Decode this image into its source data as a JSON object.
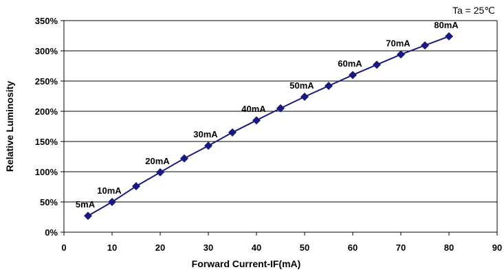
{
  "chart_data": {
    "type": "line",
    "title": "",
    "condition_label": "Ta = 25℃",
    "xlabel": "Forward Current-IF(mA)",
    "ylabel": "Relative Luminosity",
    "xlim": [
      0,
      90
    ],
    "ylim": [
      0,
      350
    ],
    "xticks": [
      0,
      10,
      20,
      30,
      40,
      50,
      60,
      70,
      80,
      90
    ],
    "yticks": [
      0,
      50,
      100,
      150,
      200,
      250,
      300,
      350
    ],
    "ytick_labels": [
      "0%",
      "50%",
      "100%",
      "150%",
      "200%",
      "250%",
      "300%",
      "350%"
    ],
    "grid": "horizontal",
    "series_color": "#1a1a7e",
    "series": [
      {
        "x": [
          5,
          10,
          15,
          20,
          25,
          30,
          35,
          40,
          45,
          50,
          55,
          60,
          65,
          70,
          75,
          80
        ],
        "y": [
          27,
          50,
          76,
          99,
          122,
          143,
          165,
          185,
          205,
          224,
          242,
          260,
          277,
          294,
          309,
          324
        ]
      }
    ],
    "annotations": [
      {
        "text": "5mA",
        "x": 5,
        "y": 27
      },
      {
        "text": "10mA",
        "x": 10,
        "y": 50
      },
      {
        "text": "20mA",
        "x": 20,
        "y": 99
      },
      {
        "text": "30mA",
        "x": 30,
        "y": 143
      },
      {
        "text": "40mA",
        "x": 40,
        "y": 185
      },
      {
        "text": "50mA",
        "x": 50,
        "y": 224
      },
      {
        "text": "60mA",
        "x": 60,
        "y": 260
      },
      {
        "text": "70mA",
        "x": 70,
        "y": 294
      },
      {
        "text": "80mA",
        "x": 80,
        "y": 324
      }
    ]
  }
}
